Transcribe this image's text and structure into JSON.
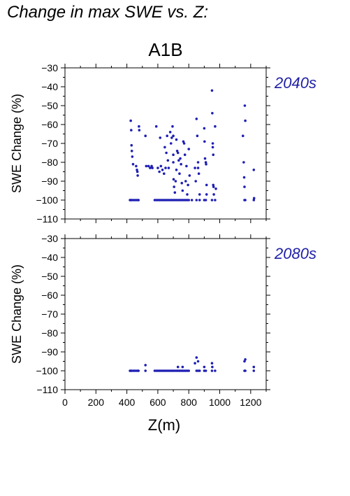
{
  "title": "Change in max SWE vs. Z:",
  "scenario": "A1B",
  "colors": {
    "points": "#1f1fb4",
    "panel_label": "#1f1fa8",
    "axis": "#000000"
  },
  "chart_data": [
    {
      "type": "scatter",
      "panel_label": "2040s",
      "ylabel": "SWE Change (%)",
      "xlabel": "",
      "xlim": [
        0,
        1300
      ],
      "ylim": [
        -110,
        -30
      ],
      "xticks": [
        0,
        200,
        400,
        600,
        800,
        1000,
        1200
      ],
      "yticks": [
        -110,
        -100,
        -90,
        -80,
        -70,
        -60,
        -50,
        -40,
        -30
      ],
      "show_x_tick_labels": false,
      "grid": false,
      "points": [
        [
          420,
          -100
        ],
        [
          425,
          -100
        ],
        [
          430,
          -100
        ],
        [
          440,
          -100
        ],
        [
          450,
          -100
        ],
        [
          460,
          -100
        ],
        [
          470,
          -100
        ],
        [
          475,
          -100
        ],
        [
          580,
          -100
        ],
        [
          590,
          -100
        ],
        [
          600,
          -100
        ],
        [
          610,
          -100
        ],
        [
          620,
          -100
        ],
        [
          630,
          -100
        ],
        [
          640,
          -100
        ],
        [
          650,
          -100
        ],
        [
          660,
          -100
        ],
        [
          670,
          -100
        ],
        [
          680,
          -100
        ],
        [
          690,
          -100
        ],
        [
          700,
          -100
        ],
        [
          710,
          -100
        ],
        [
          720,
          -100
        ],
        [
          730,
          -100
        ],
        [
          740,
          -100
        ],
        [
          750,
          -100
        ],
        [
          760,
          -100
        ],
        [
          770,
          -100
        ],
        [
          780,
          -100
        ],
        [
          790,
          -100
        ],
        [
          800,
          -100
        ],
        [
          820,
          -100
        ],
        [
          850,
          -100
        ],
        [
          870,
          -100
        ],
        [
          900,
          -100
        ],
        [
          910,
          -100
        ],
        [
          950,
          -100
        ],
        [
          970,
          -100
        ],
        [
          1160,
          -100
        ],
        [
          1165,
          -100
        ],
        [
          1220,
          -100
        ],
        [
          425,
          -58
        ],
        [
          428,
          -63
        ],
        [
          430,
          -71
        ],
        [
          432,
          -74
        ],
        [
          435,
          -77
        ],
        [
          440,
          -81
        ],
        [
          460,
          -82
        ],
        [
          465,
          -84
        ],
        [
          468,
          -85
        ],
        [
          470,
          -87
        ],
        [
          478,
          -61
        ],
        [
          480,
          -63
        ],
        [
          520,
          -66
        ],
        [
          525,
          -82
        ],
        [
          540,
          -82
        ],
        [
          550,
          -83
        ],
        [
          560,
          -82
        ],
        [
          565,
          -83
        ],
        [
          590,
          -61
        ],
        [
          600,
          -83
        ],
        [
          610,
          -85
        ],
        [
          615,
          -67
        ],
        [
          620,
          -82
        ],
        [
          630,
          -84
        ],
        [
          640,
          -86
        ],
        [
          645,
          -72
        ],
        [
          650,
          -83
        ],
        [
          655,
          -75
        ],
        [
          660,
          -66
        ],
        [
          665,
          -79
        ],
        [
          670,
          -83
        ],
        [
          680,
          -64
        ],
        [
          685,
          -70
        ],
        [
          690,
          -67
        ],
        [
          695,
          -61
        ],
        [
          700,
          -66
        ],
        [
          700,
          -76
        ],
        [
          700,
          -80
        ],
        [
          702,
          -89
        ],
        [
          705,
          -93
        ],
        [
          710,
          -96
        ],
        [
          715,
          -90
        ],
        [
          720,
          -68
        ],
        [
          720,
          -84
        ],
        [
          725,
          -74
        ],
        [
          730,
          -75
        ],
        [
          735,
          -79
        ],
        [
          740,
          -86
        ],
        [
          745,
          -78
        ],
        [
          750,
          -81
        ],
        [
          755,
          -91
        ],
        [
          760,
          -95
        ],
        [
          765,
          -69
        ],
        [
          770,
          -70
        ],
        [
          775,
          -76
        ],
        [
          780,
          -90
        ],
        [
          785,
          -82
        ],
        [
          790,
          -97
        ],
        [
          795,
          -92
        ],
        [
          800,
          -73
        ],
        [
          805,
          -87
        ],
        [
          840,
          -83
        ],
        [
          845,
          -90
        ],
        [
          850,
          -57
        ],
        [
          855,
          -66
        ],
        [
          860,
          -80
        ],
        [
          860,
          -83
        ],
        [
          865,
          -86
        ],
        [
          870,
          -97
        ],
        [
          900,
          -62
        ],
        [
          902,
          -69
        ],
        [
          905,
          -78
        ],
        [
          910,
          -80
        ],
        [
          912,
          -81
        ],
        [
          915,
          -92
        ],
        [
          915,
          -97
        ],
        [
          950,
          -42
        ],
        [
          952,
          -54
        ],
        [
          955,
          -70
        ],
        [
          955,
          -72
        ],
        [
          958,
          -76
        ],
        [
          958,
          -92
        ],
        [
          960,
          -93
        ],
        [
          962,
          -97
        ],
        [
          970,
          -61
        ],
        [
          975,
          -94
        ],
        [
          1150,
          -66
        ],
        [
          1155,
          -80
        ],
        [
          1158,
          -88
        ],
        [
          1160,
          -93
        ],
        [
          1162,
          -50
        ],
        [
          1165,
          -58
        ],
        [
          1220,
          -84
        ],
        [
          1222,
          -99
        ]
      ]
    },
    {
      "type": "scatter",
      "panel_label": "2080s",
      "ylabel": "SWE Change (%)",
      "xlabel": "Z(m)",
      "xlim": [
        0,
        1300
      ],
      "ylim": [
        -110,
        -30
      ],
      "xticks": [
        0,
        200,
        400,
        600,
        800,
        1000,
        1200
      ],
      "yticks": [
        -110,
        -100,
        -90,
        -80,
        -70,
        -60,
        -50,
        -40,
        -30
      ],
      "show_x_tick_labels": true,
      "grid": false,
      "points": [
        [
          420,
          -100
        ],
        [
          425,
          -100
        ],
        [
          430,
          -100
        ],
        [
          440,
          -100
        ],
        [
          450,
          -100
        ],
        [
          460,
          -100
        ],
        [
          470,
          -100
        ],
        [
          475,
          -100
        ],
        [
          520,
          -100
        ],
        [
          580,
          -100
        ],
        [
          590,
          -100
        ],
        [
          600,
          -100
        ],
        [
          610,
          -100
        ],
        [
          620,
          -100
        ],
        [
          630,
          -100
        ],
        [
          640,
          -100
        ],
        [
          650,
          -100
        ],
        [
          660,
          -100
        ],
        [
          670,
          -100
        ],
        [
          680,
          -100
        ],
        [
          690,
          -100
        ],
        [
          700,
          -100
        ],
        [
          710,
          -100
        ],
        [
          720,
          -100
        ],
        [
          730,
          -100
        ],
        [
          740,
          -100
        ],
        [
          750,
          -100
        ],
        [
          760,
          -100
        ],
        [
          770,
          -100
        ],
        [
          780,
          -100
        ],
        [
          790,
          -100
        ],
        [
          800,
          -100
        ],
        [
          850,
          -100
        ],
        [
          860,
          -100
        ],
        [
          870,
          -100
        ],
        [
          900,
          -100
        ],
        [
          910,
          -100
        ],
        [
          950,
          -100
        ],
        [
          970,
          -100
        ],
        [
          1160,
          -100
        ],
        [
          1165,
          -100
        ],
        [
          1220,
          -100
        ],
        [
          520,
          -97
        ],
        [
          730,
          -98
        ],
        [
          760,
          -98
        ],
        [
          840,
          -96
        ],
        [
          850,
          -93
        ],
        [
          860,
          -95
        ],
        [
          900,
          -98
        ],
        [
          950,
          -96
        ],
        [
          952,
          -98
        ],
        [
          1160,
          -95
        ],
        [
          1165,
          -94
        ],
        [
          1220,
          -98
        ]
      ]
    }
  ]
}
